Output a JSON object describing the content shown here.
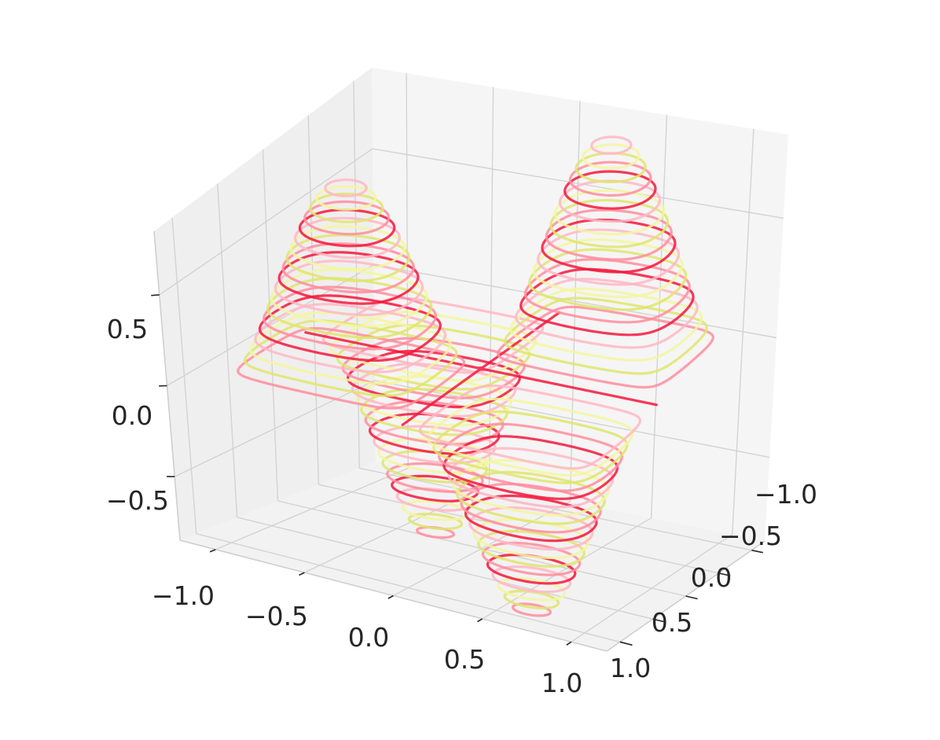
{
  "chart_data": {
    "type": "contour3d",
    "title": "",
    "xlabel": "",
    "ylabel": "",
    "zlabel": "",
    "function": "sin(pi*x)*sin(pi*y)",
    "x_range": [
      -1.2,
      1.2
    ],
    "y_range": [
      -1.2,
      1.2
    ],
    "zlim": [
      -0.85,
      0.85
    ],
    "x_ticks": [
      -1.0,
      -0.5,
      0.0,
      0.5,
      1.0
    ],
    "y_ticks": [
      -1.0,
      -0.5,
      0.0,
      0.5,
      1.0
    ],
    "z_ticks": [
      -0.5,
      0.0,
      0.5
    ],
    "x_tick_labels": [
      "−1.0",
      "−0.5",
      "0.0",
      "0.5",
      "1.0"
    ],
    "y_tick_labels": [
      "−1.0",
      "−0.5",
      "0.0",
      "0.5",
      "1.0"
    ],
    "z_tick_labels": [
      "−0.5",
      "0.0",
      "0.5"
    ],
    "contour_levels": 40,
    "colors": [
      "#f5163c",
      "#ff8d9d",
      "#dfe56b",
      "#f3f6a0",
      "#ffb7c4"
    ],
    "grid": true,
    "pane_colors": {
      "back": "#f5f5f5",
      "side": "#efefef",
      "floor": "#f2f2f2"
    }
  }
}
